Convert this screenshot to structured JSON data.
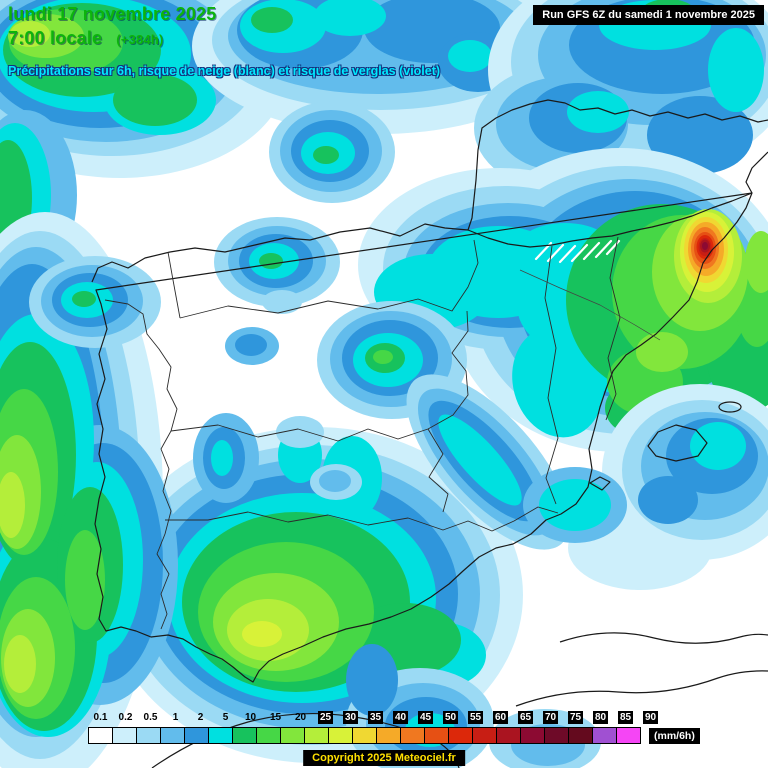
{
  "header": {
    "date_line": "lundi 17 novembre 2025",
    "time_line": "7:00 locale",
    "forecast_offset": "(+384h)",
    "subtitle": "Précipitations sur 6h, risque de neige (blanc) et risque de verglas (violet)"
  },
  "run_info": {
    "label": "Run GFS 6Z du samedi 1 novembre 2025"
  },
  "legend": {
    "unit": "(mm/6h)",
    "items": [
      {
        "label": "0.1",
        "color": "#FFFFFF",
        "boxed": false
      },
      {
        "label": "0.2",
        "color": "#CDEFFB",
        "boxed": false
      },
      {
        "label": "0.5",
        "color": "#9BDAF4",
        "boxed": false
      },
      {
        "label": "1",
        "color": "#62BCEC",
        "boxed": false
      },
      {
        "label": "2",
        "color": "#2F96DC",
        "boxed": false
      },
      {
        "label": "5",
        "color": "#00E0E0",
        "boxed": false
      },
      {
        "label": "10",
        "color": "#17C25D",
        "boxed": false
      },
      {
        "label": "15",
        "color": "#46D746",
        "boxed": false
      },
      {
        "label": "20",
        "color": "#82E63C",
        "boxed": false
      },
      {
        "label": "25",
        "color": "#B4EE3A",
        "boxed": true
      },
      {
        "label": "30",
        "color": "#D8F238",
        "boxed": true
      },
      {
        "label": "35",
        "color": "#F0D832",
        "boxed": true
      },
      {
        "label": "40",
        "color": "#F5AA28",
        "boxed": true
      },
      {
        "label": "45",
        "color": "#F07820",
        "boxed": true
      },
      {
        "label": "50",
        "color": "#E65014",
        "boxed": true
      },
      {
        "label": "55",
        "color": "#DC280A",
        "boxed": true
      },
      {
        "label": "60",
        "color": "#C81E14",
        "boxed": true
      },
      {
        "label": "65",
        "color": "#AA1420",
        "boxed": true
      },
      {
        "label": "70",
        "color": "#8C0A32",
        "boxed": true
      },
      {
        "label": "75",
        "color": "#6E0A28",
        "boxed": true
      },
      {
        "label": "80",
        "color": "#640A1E",
        "boxed": true
      },
      {
        "label": "85",
        "color": "#A050D2",
        "boxed": true
      },
      {
        "label": "90",
        "color": "#F545F5",
        "boxed": true
      }
    ]
  },
  "footer": {
    "copyright": "Copyright 2025 Meteociel.fr"
  }
}
